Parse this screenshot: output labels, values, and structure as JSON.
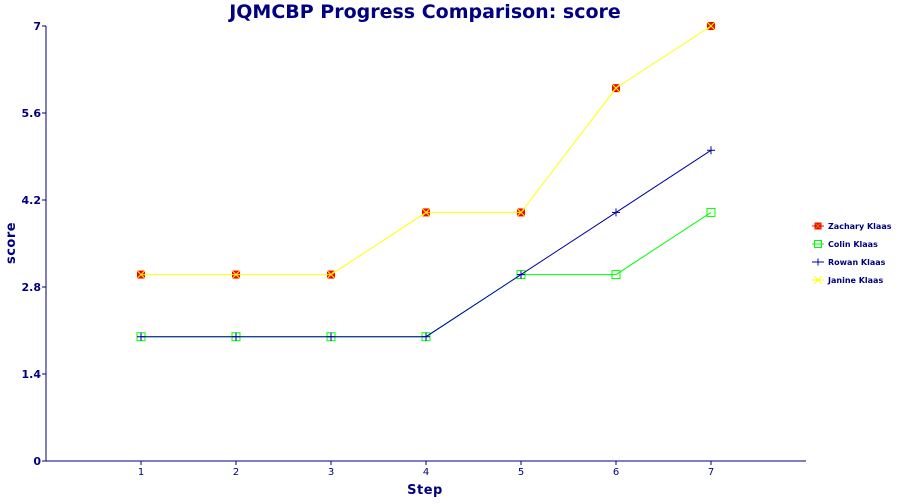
{
  "chart_data": {
    "type": "line",
    "title": "JQMCBP Progress Comparison: score",
    "xlabel": "Step",
    "ylabel": "score",
    "x": [
      1,
      2,
      3,
      4,
      5,
      6,
      7
    ],
    "x_tick_labels": [
      "1",
      "2",
      "3",
      "4",
      "5",
      "6",
      "7"
    ],
    "xlim": [
      0,
      8
    ],
    "ylim": [
      0,
      7
    ],
    "y_ticks": [
      0,
      1.4,
      2.8,
      4.2,
      5.6,
      7
    ],
    "y_tick_labels": [
      "0",
      "1.4",
      "2.8",
      "4.2",
      "5.6",
      "7"
    ],
    "grid": false,
    "legend_position": "right",
    "series": [
      {
        "name": "Zachary Klaas",
        "color": "#ff0000",
        "marker": "filled-square",
        "line": false,
        "values": [
          3,
          3,
          3,
          4,
          4,
          6,
          7
        ]
      },
      {
        "name": "Colin Klaas",
        "color": "#00ff00",
        "marker": "open-square",
        "line": true,
        "values": [
          2,
          2,
          2,
          2,
          3,
          3,
          4
        ]
      },
      {
        "name": "Rowan Klaas",
        "color": "#0000aa",
        "marker": "plus",
        "line": true,
        "values": [
          2,
          2,
          2,
          2,
          3,
          4,
          5
        ]
      },
      {
        "name": "Janine Klaas",
        "color": "#ffff00",
        "marker": "cross",
        "line": true,
        "values": [
          3,
          3,
          3,
          4,
          4,
          6,
          7
        ]
      }
    ],
    "axis_color": "#000080",
    "text_color": "#000080"
  }
}
